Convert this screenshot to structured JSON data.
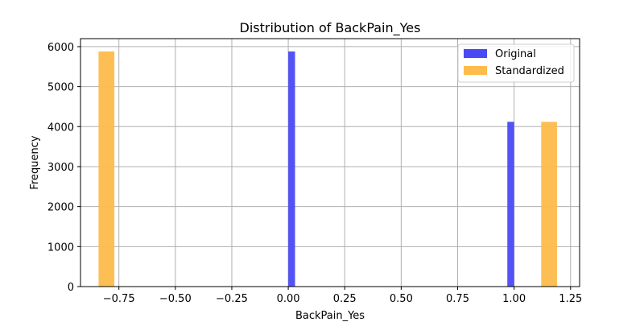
{
  "chart_data": {
    "type": "bar",
    "title": "Distribution of BackPain_Yes",
    "xlabel": "BackPain_Yes",
    "ylabel": "Frequency",
    "xlim": [
      -0.92,
      1.29
    ],
    "ylim": [
      0,
      6200
    ],
    "xticks": [
      -0.75,
      -0.5,
      -0.25,
      0.0,
      0.25,
      0.5,
      0.75,
      1.0,
      1.25
    ],
    "xtick_labels": [
      "−0.75",
      "−0.50",
      "−0.25",
      "0.00",
      "0.25",
      "0.50",
      "0.75",
      "1.00",
      "1.25"
    ],
    "yticks": [
      0,
      1000,
      2000,
      3000,
      4000,
      5000,
      6000
    ],
    "ytick_labels": [
      "0",
      "1000",
      "2000",
      "3000",
      "4000",
      "5000",
      "6000"
    ],
    "grid": true,
    "legend_position": "top-right",
    "series": [
      {
        "name": "Original",
        "color": "#4a4af4",
        "bars": [
          {
            "x0": 0.0,
            "x1": 0.03,
            "value": 5880
          },
          {
            "x0": 0.97,
            "x1": 1.0,
            "value": 4120
          }
        ]
      },
      {
        "name": "Standardized",
        "color": "#fdbc4b",
        "bars": [
          {
            "x0": -0.84,
            "x1": -0.77,
            "value": 5880
          },
          {
            "x0": 1.12,
            "x1": 1.19,
            "value": 4120
          }
        ]
      }
    ]
  }
}
